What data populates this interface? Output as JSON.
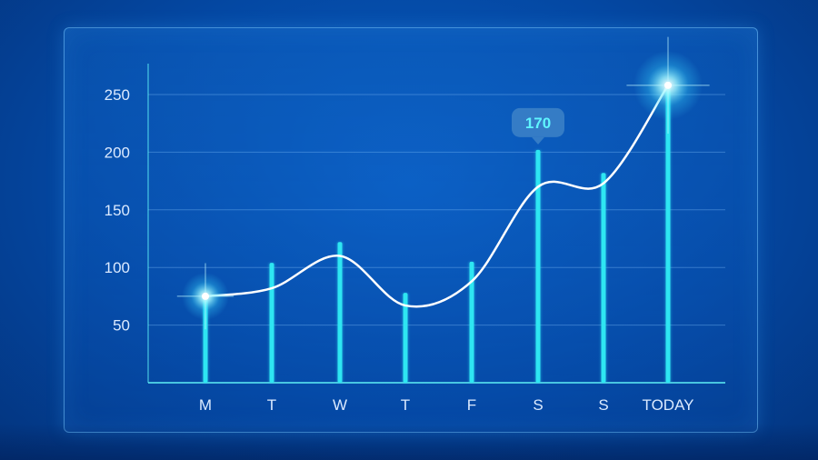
{
  "chart_data": {
    "type": "bar",
    "categories": [
      "M",
      "T",
      "W",
      "T",
      "F",
      "S",
      "S",
      "TODAY"
    ],
    "values": [
      75,
      104,
      122,
      78,
      105,
      202,
      182,
      258
    ],
    "line": [
      75,
      82,
      110,
      67,
      88,
      170,
      173,
      258
    ],
    "y_ticks": [
      "250",
      "200",
      "150",
      "100",
      "50"
    ],
    "y_tick_values": [
      250,
      200,
      150,
      100,
      50
    ],
    "ylim": [
      0,
      250
    ],
    "callout": {
      "category_index": 5,
      "label": "170"
    },
    "highlight_points": [
      0,
      7
    ],
    "title": "",
    "xlabel": "",
    "ylabel": "",
    "grid": true,
    "colors": {
      "bar": "#2ee6f2",
      "line": "#ffffff",
      "grid": "#6fb0f0",
      "axis": "#5ff0f5",
      "text": "#dbeaff",
      "callout_bg": "#3a7fc7",
      "callout_text": "#5ff5ff"
    }
  }
}
